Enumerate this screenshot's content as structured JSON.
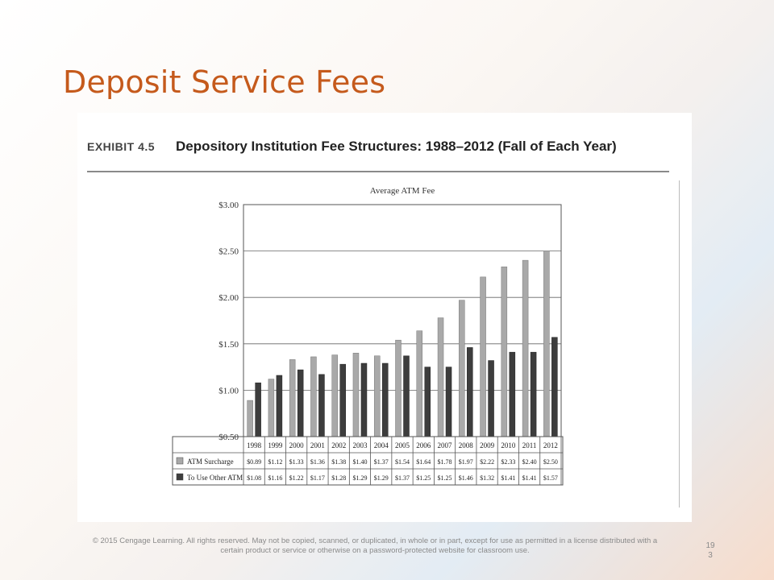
{
  "slide": {
    "title": "Deposit Service Fees",
    "footer": "© 2015 Cengage Learning. All rights reserved. May not be copied, scanned, or duplicated, in whole or in part, except for use as permitted in a license distributed with a certain product or service or otherwise on a password-protected website for classroom use.",
    "page_number": "19\n3"
  },
  "exhibit": {
    "number": "EXHIBIT 4.5",
    "title": "Depository Institution Fee Structures: 1988–2012 (Fall of Each Year)"
  },
  "chart_data": {
    "type": "bar",
    "title": "Average ATM Fee",
    "categories": [
      "1998",
      "1999",
      "2000",
      "2001",
      "2002",
      "2003",
      "2004",
      "2005",
      "2006",
      "2007",
      "2008",
      "2009",
      "2010",
      "2011",
      "2012"
    ],
    "series": [
      {
        "name": "ATM Surcharge",
        "color": "#a9a9a9",
        "values": [
          0.89,
          1.12,
          1.33,
          1.36,
          1.38,
          1.4,
          1.37,
          1.54,
          1.64,
          1.78,
          1.97,
          2.22,
          2.33,
          2.4,
          2.5
        ],
        "labels": [
          "$0.89",
          "$1.12",
          "$1.33",
          "$1.36",
          "$1.38",
          "$1.40",
          "$1.37",
          "$1.54",
          "$1.64",
          "$1.78",
          "$1.97",
          "$2.22",
          "$2.33",
          "$2.40",
          "$2.50"
        ]
      },
      {
        "name": "To Use Other ATM",
        "color": "#3d3d3d",
        "values": [
          1.08,
          1.16,
          1.22,
          1.17,
          1.28,
          1.29,
          1.29,
          1.37,
          1.25,
          1.25,
          1.46,
          1.32,
          1.41,
          1.41,
          1.57
        ],
        "labels": [
          "$1.08",
          "$1.16",
          "$1.22",
          "$1.17",
          "$1.28",
          "$1.29",
          "$1.29",
          "$1.37",
          "$1.25",
          "$1.25",
          "$1.46",
          "$1.32",
          "$1.41",
          "$1.41",
          "$1.57"
        ]
      }
    ],
    "ylim": [
      0.5,
      3.0
    ],
    "yticks": [
      0.5,
      1.0,
      1.5,
      2.0,
      2.5,
      3.0
    ],
    "ytick_labels": [
      "$0.50",
      "$1.00",
      "$1.50",
      "$2.00",
      "$2.50",
      "$3.00"
    ],
    "grid": true,
    "legend": "data-table-below"
  }
}
